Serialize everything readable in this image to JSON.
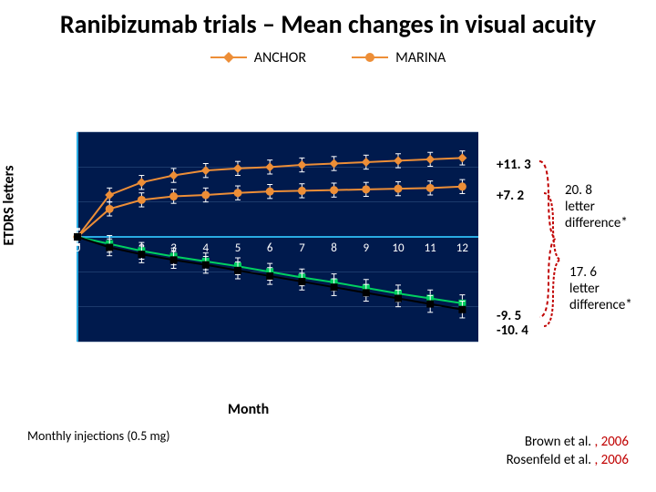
{
  "title": "Ranibizumab trials – Mean changes in visual acuity",
  "ylabel": "ETDRS letters",
  "xlabel": "Month",
  "footnote": "Monthly injections (0.5 mg)",
  "legend": {
    "anchor": {
      "label": "ANCHOR",
      "color": "#ed8e37",
      "marker": "diamond"
    },
    "marina": {
      "label": "MARINA",
      "color": "#ed8e37",
      "marker": "circle"
    }
  },
  "chart": {
    "type": "line",
    "background_color": "#001a4d",
    "grid_color": "#3a5a8a",
    "axis_color": "#29abe2",
    "tick_color": "#ffffff",
    "tick_fontsize": 13,
    "xlim": [
      0,
      12.5
    ],
    "ylim": [
      -15,
      15
    ],
    "xticks": [
      0,
      1,
      2,
      3,
      4,
      5,
      6,
      7,
      8,
      9,
      10,
      11,
      12
    ],
    "yticks": [
      -15,
      -10,
      -5,
      0,
      5,
      10,
      15
    ],
    "error_bar_color": "#ffffff",
    "series": {
      "anchor_tx": {
        "x": [
          0,
          1,
          2,
          3,
          4,
          5,
          6,
          7,
          8,
          9,
          10,
          11,
          12
        ],
        "y": [
          0,
          6.0,
          7.8,
          8.8,
          9.5,
          9.8,
          10.0,
          10.3,
          10.5,
          10.7,
          10.9,
          11.1,
          11.3
        ],
        "err": 1.0,
        "color": "#ed8e37",
        "marker": "diamond",
        "lw": 2
      },
      "marina_tx": {
        "x": [
          0,
          1,
          2,
          3,
          4,
          5,
          6,
          7,
          8,
          9,
          10,
          11,
          12
        ],
        "y": [
          0,
          4.0,
          5.3,
          5.8,
          6.0,
          6.3,
          6.5,
          6.6,
          6.7,
          6.8,
          6.9,
          7.0,
          7.2
        ],
        "err": 1.0,
        "color": "#ed8e37",
        "marker": "circle",
        "lw": 2
      },
      "anchor_ctrl": {
        "x": [
          0,
          1,
          2,
          3,
          4,
          5,
          6,
          7,
          8,
          9,
          10,
          11,
          12
        ],
        "y": [
          0,
          -1.0,
          -2.0,
          -2.8,
          -3.5,
          -4.2,
          -5.0,
          -5.8,
          -6.5,
          -7.3,
          -8.1,
          -8.8,
          -9.5
        ],
        "err": 1.2,
        "color": "#00d060",
        "marker": "square",
        "lw": 2
      },
      "marina_ctrl": {
        "x": [
          0,
          1,
          2,
          3,
          4,
          5,
          6,
          7,
          8,
          9,
          10,
          11,
          12
        ],
        "y": [
          0,
          -1.5,
          -2.5,
          -3.3,
          -4.0,
          -4.8,
          -5.6,
          -6.4,
          -7.2,
          -8.0,
          -8.8,
          -9.6,
          -10.4
        ],
        "err": 1.2,
        "color": "#000000",
        "marker": "square",
        "lw": 2
      }
    }
  },
  "annotations": {
    "anchor_end": "+11. 3",
    "marina_end": "+7. 2",
    "anchor_ctrl_end": "-9. 5",
    "marina_ctrl_end": "-10. 4",
    "diff1": {
      "value": "20. 8",
      "text": "letter difference*"
    },
    "diff2": {
      "value": "17. 6",
      "text": "letter difference*"
    }
  },
  "brace_color": "#c00000",
  "citations": [
    "Brown et al. , 2006",
    "Rosenfeld et al. , 2006"
  ]
}
